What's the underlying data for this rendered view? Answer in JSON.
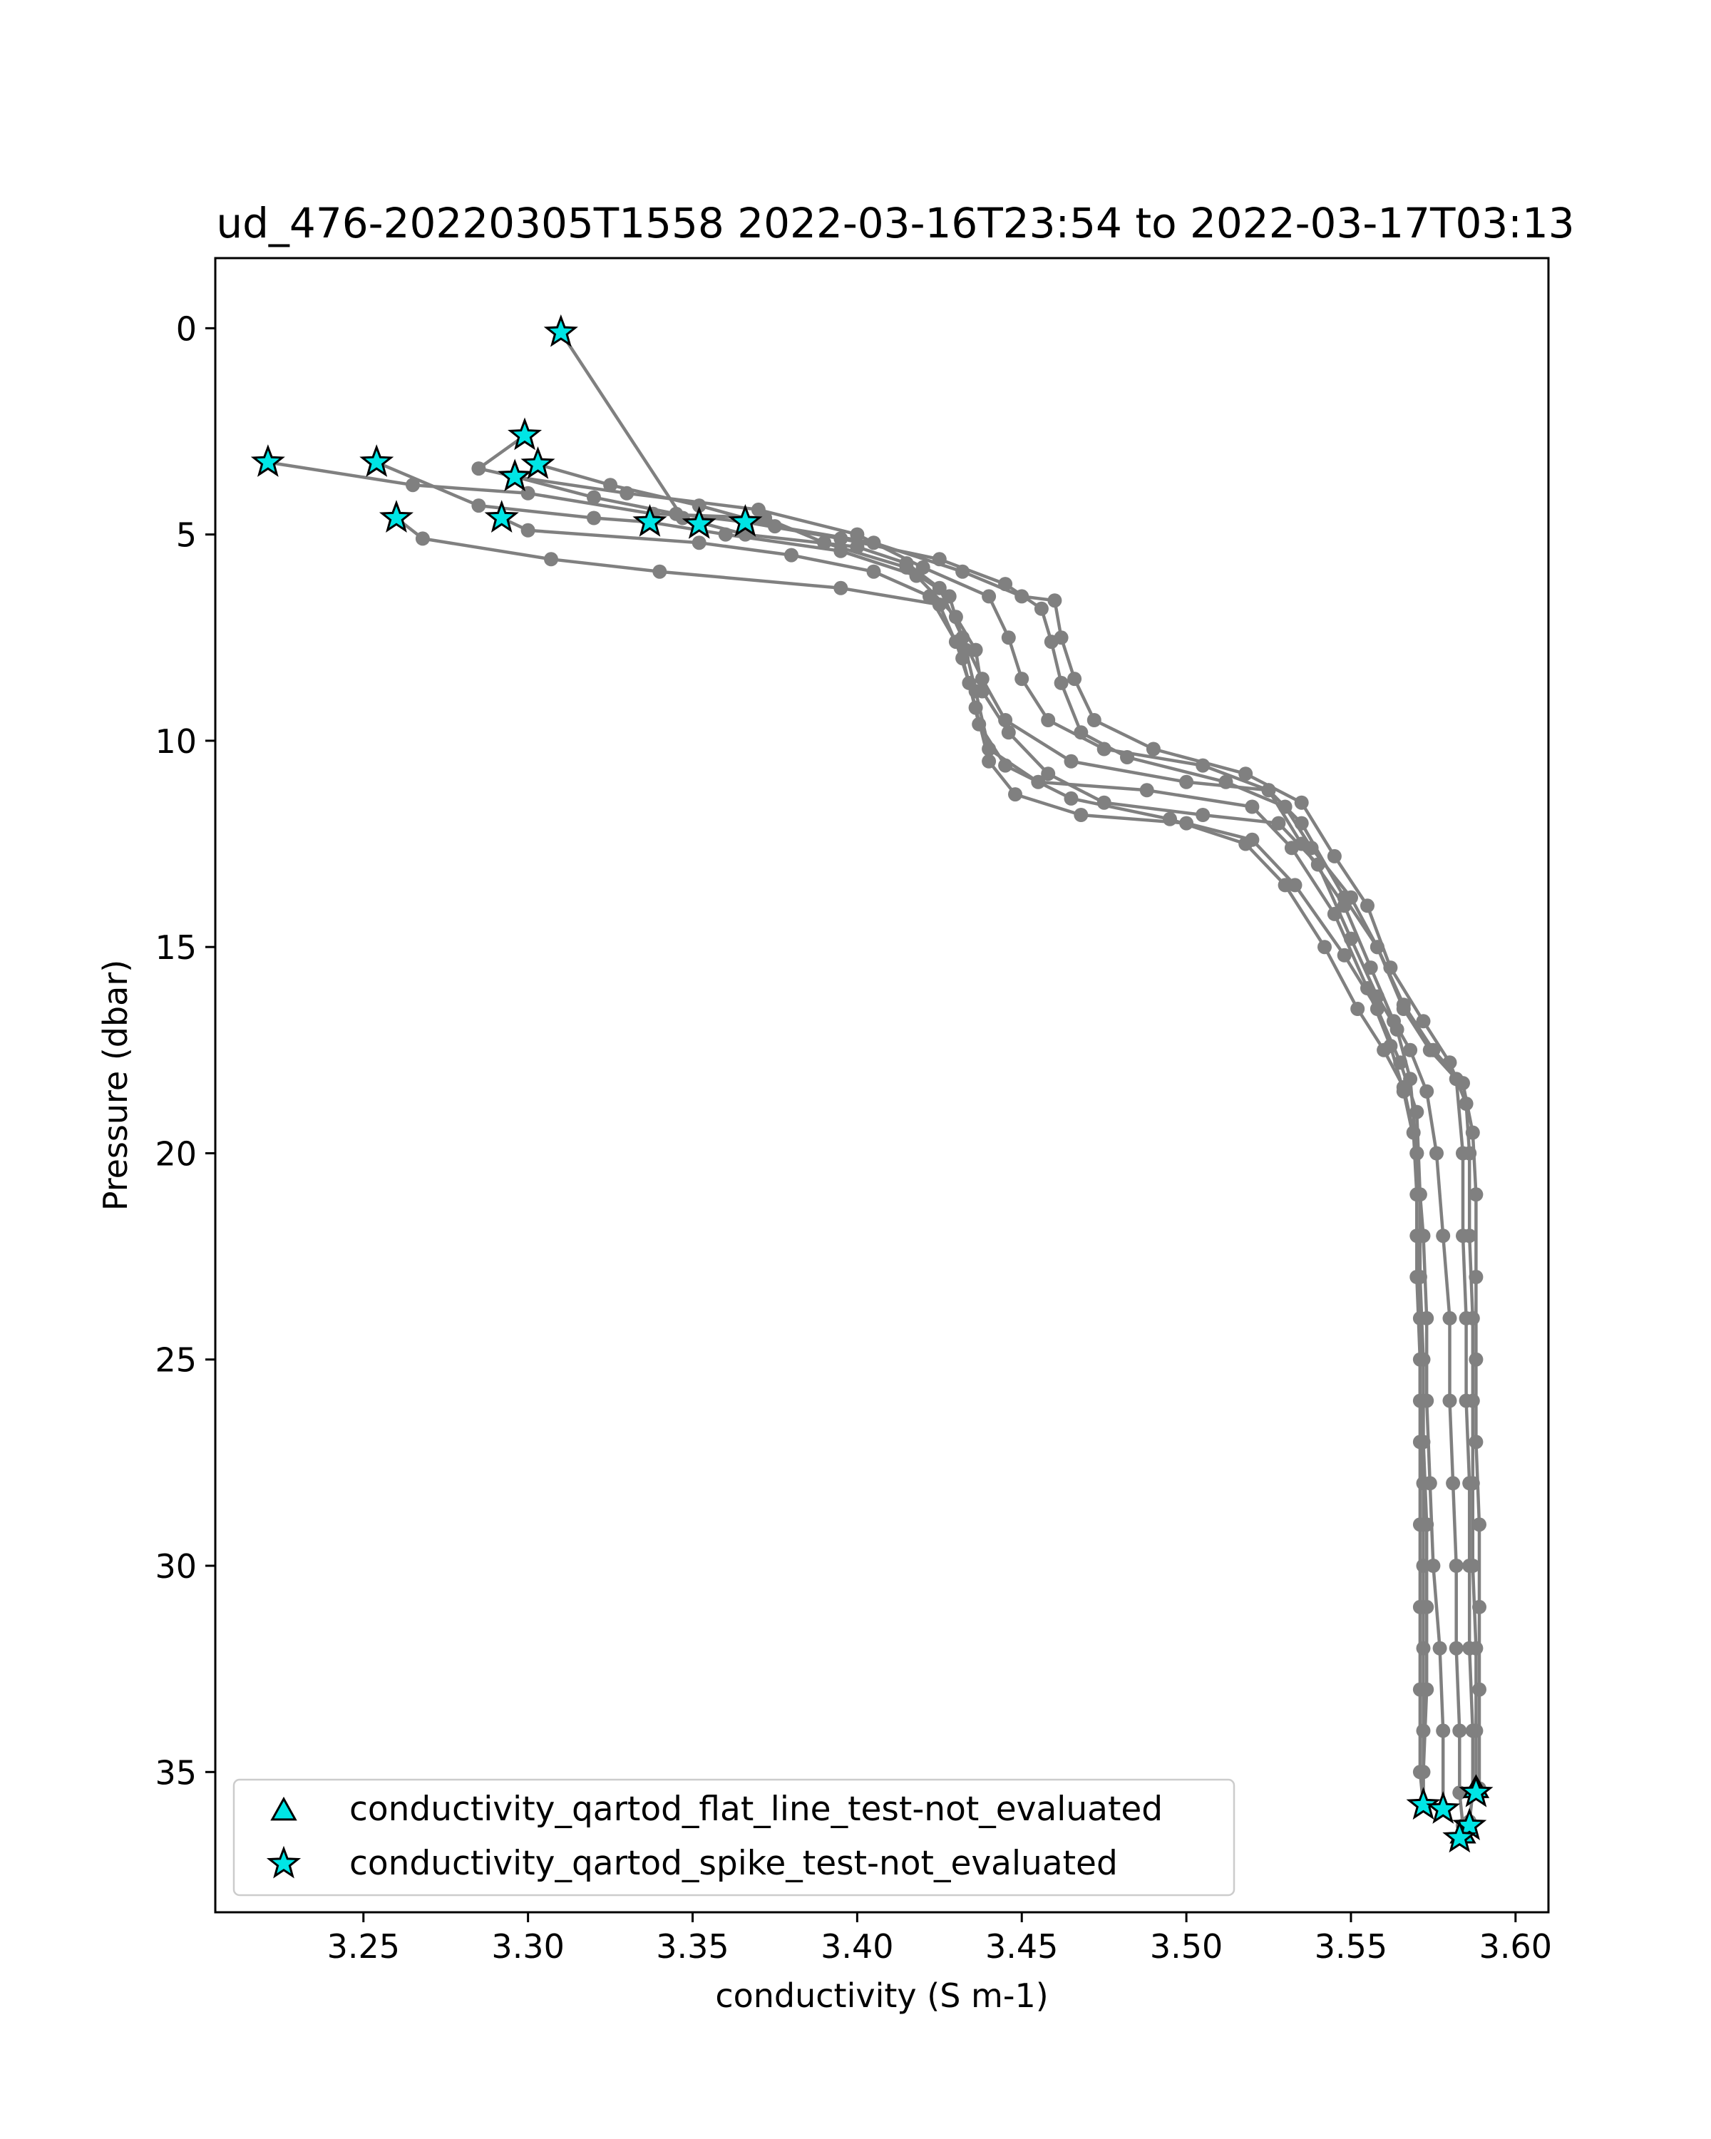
{
  "chart_data": {
    "type": "line",
    "title": "ud_476-20220305T1558 2022-03-16T23:54 to 2022-03-17T03:13",
    "xlabel": "conductivity (S m-1)",
    "ylabel": "Pressure (dbar)",
    "xlim": [
      3.205,
      3.61
    ],
    "ylim": [
      38.4,
      -1.7
    ],
    "y_inverted": true,
    "xticks": [
      3.25,
      3.3,
      3.35,
      3.4,
      3.45,
      3.5,
      3.55,
      3.6
    ],
    "xtick_labels": [
      "3.25",
      "3.30",
      "3.35",
      "3.40",
      "3.45",
      "3.50",
      "3.55",
      "3.60"
    ],
    "yticks": [
      0,
      5,
      10,
      15,
      20,
      25,
      30,
      35
    ],
    "ytick_labels": [
      "0",
      "5",
      "10",
      "15",
      "20",
      "25",
      "30",
      "35"
    ],
    "grid": false,
    "line_color": "#808080",
    "marker_color": "#00e5e5",
    "legend": {
      "placement": "lower-left",
      "entries": [
        {
          "label": "conductivity_qartod_flat_line_test-not_evaluated",
          "marker": "triangle"
        },
        {
          "label": "conductivity_qartod_spike_test-not_evaluated",
          "marker": "star"
        }
      ]
    },
    "series": [
      {
        "points": [
          [
            3.31,
            0.1
          ],
          [
            3.347,
            4.6
          ],
          [
            3.366,
            5.0
          ],
          [
            3.4,
            5.3
          ],
          [
            3.415,
            5.7
          ],
          [
            3.425,
            6.3
          ],
          [
            3.432,
            7.5
          ],
          [
            3.438,
            8.5
          ],
          [
            3.445,
            9.5
          ],
          [
            3.465,
            10.5
          ],
          [
            3.5,
            11.0
          ],
          [
            3.525,
            11.2
          ],
          [
            3.535,
            12.5
          ],
          [
            3.548,
            14.0
          ],
          [
            3.556,
            15.5
          ],
          [
            3.563,
            16.8
          ],
          [
            3.568,
            17.5
          ],
          [
            3.573,
            18.5
          ],
          [
            3.576,
            20.0
          ],
          [
            3.578,
            22.0
          ],
          [
            3.58,
            24.0
          ],
          [
            3.58,
            26.0
          ],
          [
            3.581,
            28.0
          ],
          [
            3.582,
            30.0
          ],
          [
            3.582,
            32.0
          ],
          [
            3.583,
            34.0
          ],
          [
            3.583,
            35.5
          ],
          [
            3.584,
            36.3
          ]
        ]
      },
      {
        "points": [
          [
            3.221,
            3.25
          ],
          [
            3.265,
            3.8
          ],
          [
            3.3,
            4.0
          ],
          [
            3.338,
            4.5
          ],
          [
            3.372,
            4.6
          ],
          [
            3.39,
            5.2
          ],
          [
            3.415,
            5.8
          ],
          [
            3.428,
            6.5
          ],
          [
            3.433,
            7.8
          ],
          [
            3.436,
            8.8
          ],
          [
            3.44,
            10.2
          ],
          [
            3.455,
            11.0
          ],
          [
            3.488,
            11.2
          ],
          [
            3.52,
            11.6
          ],
          [
            3.532,
            12.6
          ],
          [
            3.545,
            14.2
          ],
          [
            3.555,
            16.0
          ],
          [
            3.562,
            17.4
          ],
          [
            3.566,
            18.5
          ],
          [
            3.57,
            20.0
          ],
          [
            3.572,
            22.0
          ],
          [
            3.573,
            24.0
          ],
          [
            3.573,
            26.0
          ],
          [
            3.574,
            28.0
          ],
          [
            3.575,
            30.0
          ],
          [
            3.577,
            32.0
          ],
          [
            3.578,
            34.0
          ],
          [
            3.578,
            35.9
          ]
        ]
      },
      {
        "points": [
          [
            3.254,
            3.25
          ],
          [
            3.285,
            4.3
          ],
          [
            3.32,
            4.6
          ],
          [
            3.337,
            4.7
          ],
          [
            3.36,
            5.0
          ],
          [
            3.395,
            5.4
          ],
          [
            3.418,
            6.0
          ],
          [
            3.43,
            7.0
          ],
          [
            3.436,
            7.8
          ],
          [
            3.438,
            8.8
          ],
          [
            3.446,
            9.8
          ],
          [
            3.458,
            10.8
          ],
          [
            3.475,
            11.5
          ],
          [
            3.505,
            11.8
          ],
          [
            3.528,
            12.0
          ],
          [
            3.54,
            13.0
          ],
          [
            3.55,
            14.8
          ],
          [
            3.558,
            16.2
          ],
          [
            3.564,
            17.0
          ],
          [
            3.568,
            18.2
          ],
          [
            3.57,
            20.0
          ],
          [
            3.57,
            22.0
          ],
          [
            3.571,
            24.0
          ],
          [
            3.571,
            26.0
          ],
          [
            3.572,
            28.0
          ],
          [
            3.572,
            30.0
          ],
          [
            3.572,
            32.0
          ],
          [
            3.572,
            34.0
          ],
          [
            3.572,
            35.8
          ]
        ]
      },
      {
        "points": [
          [
            3.26,
            4.6
          ],
          [
            3.268,
            5.1
          ],
          [
            3.307,
            5.6
          ],
          [
            3.34,
            5.9
          ],
          [
            3.395,
            6.3
          ],
          [
            3.425,
            6.7
          ],
          [
            3.432,
            8.0
          ],
          [
            3.436,
            9.2
          ],
          [
            3.44,
            10.5
          ],
          [
            3.448,
            11.3
          ],
          [
            3.468,
            11.8
          ],
          [
            3.5,
            12.0
          ],
          [
            3.52,
            12.4
          ],
          [
            3.533,
            13.5
          ],
          [
            3.548,
            15.2
          ],
          [
            3.558,
            16.5
          ],
          [
            3.565,
            17.8
          ],
          [
            3.57,
            19.0
          ],
          [
            3.571,
            21.0
          ],
          [
            3.571,
            23.0
          ],
          [
            3.572,
            25.0
          ],
          [
            3.572,
            27.0
          ],
          [
            3.573,
            29.0
          ],
          [
            3.573,
            31.0
          ],
          [
            3.573,
            33.0
          ],
          [
            3.572,
            35.0
          ],
          [
            3.572,
            35.8
          ]
        ]
      },
      {
        "points": [
          [
            3.292,
            4.6
          ],
          [
            3.3,
            4.9
          ],
          [
            3.352,
            5.2
          ],
          [
            3.38,
            5.5
          ],
          [
            3.405,
            5.9
          ],
          [
            3.422,
            6.5
          ],
          [
            3.43,
            7.6
          ],
          [
            3.434,
            8.6
          ],
          [
            3.437,
            9.6
          ],
          [
            3.445,
            10.6
          ],
          [
            3.465,
            11.4
          ],
          [
            3.495,
            11.9
          ],
          [
            3.518,
            12.5
          ],
          [
            3.53,
            13.5
          ],
          [
            3.542,
            15.0
          ],
          [
            3.552,
            16.5
          ],
          [
            3.56,
            17.5
          ],
          [
            3.566,
            18.4
          ],
          [
            3.569,
            19.5
          ],
          [
            3.57,
            21.0
          ],
          [
            3.57,
            23.0
          ],
          [
            3.571,
            25.0
          ],
          [
            3.571,
            27.0
          ],
          [
            3.571,
            29.0
          ],
          [
            3.571,
            31.0
          ],
          [
            3.571,
            33.0
          ],
          [
            3.571,
            35.0
          ],
          [
            3.572,
            35.8
          ]
        ]
      },
      {
        "points": [
          [
            3.299,
            2.6
          ],
          [
            3.285,
            3.4
          ],
          [
            3.296,
            3.6
          ],
          [
            3.33,
            4.0
          ],
          [
            3.37,
            4.4
          ],
          [
            3.4,
            5.0
          ],
          [
            3.42,
            5.8
          ],
          [
            3.44,
            6.5
          ],
          [
            3.446,
            7.5
          ],
          [
            3.45,
            8.5
          ],
          [
            3.458,
            9.5
          ],
          [
            3.475,
            10.2
          ],
          [
            3.505,
            10.6
          ],
          [
            3.525,
            11.2
          ],
          [
            3.535,
            12.0
          ],
          [
            3.548,
            13.8
          ],
          [
            3.558,
            15.0
          ],
          [
            3.566,
            16.5
          ],
          [
            3.574,
            17.5
          ],
          [
            3.582,
            18.2
          ],
          [
            3.584,
            20.0
          ],
          [
            3.584,
            22.0
          ],
          [
            3.585,
            24.0
          ],
          [
            3.585,
            26.0
          ],
          [
            3.586,
            28.0
          ],
          [
            3.586,
            30.0
          ],
          [
            3.586,
            32.0
          ],
          [
            3.587,
            34.0
          ],
          [
            3.587,
            35.5
          ],
          [
            3.586,
            36.2
          ]
        ]
      },
      {
        "points": [
          [
            3.303,
            3.3
          ],
          [
            3.325,
            3.8
          ],
          [
            3.352,
            4.3
          ],
          [
            3.375,
            4.8
          ],
          [
            3.405,
            5.2
          ],
          [
            3.432,
            5.9
          ],
          [
            3.45,
            6.5
          ],
          [
            3.46,
            6.6
          ],
          [
            3.462,
            7.5
          ],
          [
            3.466,
            8.5
          ],
          [
            3.472,
            9.5
          ],
          [
            3.49,
            10.2
          ],
          [
            3.518,
            10.8
          ],
          [
            3.535,
            11.5
          ],
          [
            3.545,
            12.8
          ],
          [
            3.555,
            14.0
          ],
          [
            3.562,
            15.5
          ],
          [
            3.572,
            16.8
          ],
          [
            3.58,
            17.8
          ],
          [
            3.585,
            18.8
          ],
          [
            3.586,
            20.0
          ],
          [
            3.586,
            22.0
          ],
          [
            3.587,
            24.0
          ],
          [
            3.587,
            26.0
          ],
          [
            3.587,
            28.0
          ],
          [
            3.587,
            30.0
          ],
          [
            3.588,
            32.0
          ],
          [
            3.588,
            34.0
          ],
          [
            3.588,
            35.5
          ]
        ]
      },
      {
        "points": [
          [
            3.296,
            3.6
          ],
          [
            3.32,
            4.1
          ],
          [
            3.345,
            4.5
          ],
          [
            3.366,
            4.7
          ],
          [
            3.395,
            5.1
          ],
          [
            3.425,
            5.6
          ],
          [
            3.445,
            6.2
          ],
          [
            3.456,
            6.8
          ],
          [
            3.459,
            7.6
          ],
          [
            3.462,
            8.6
          ],
          [
            3.468,
            9.8
          ],
          [
            3.482,
            10.4
          ],
          [
            3.512,
            11.0
          ],
          [
            3.53,
            11.6
          ],
          [
            3.538,
            12.6
          ],
          [
            3.55,
            13.8
          ],
          [
            3.558,
            15.0
          ],
          [
            3.566,
            16.4
          ],
          [
            3.575,
            17.5
          ],
          [
            3.584,
            18.3
          ],
          [
            3.587,
            19.5
          ],
          [
            3.588,
            21.0
          ],
          [
            3.588,
            23.0
          ],
          [
            3.588,
            25.0
          ],
          [
            3.588,
            27.0
          ],
          [
            3.589,
            29.0
          ],
          [
            3.589,
            31.0
          ],
          [
            3.589,
            33.0
          ],
          [
            3.589,
            35.4
          ]
        ]
      }
    ],
    "spike_markers": [
      [
        3.31,
        0.1
      ],
      [
        3.299,
        2.6
      ],
      [
        3.221,
        3.25
      ],
      [
        3.254,
        3.25
      ],
      [
        3.303,
        3.3
      ],
      [
        3.296,
        3.6
      ],
      [
        3.26,
        4.6
      ],
      [
        3.292,
        4.6
      ],
      [
        3.337,
        4.7
      ],
      [
        3.352,
        4.75
      ],
      [
        3.366,
        4.7
      ],
      [
        3.572,
        35.8
      ],
      [
        3.578,
        35.9
      ],
      [
        3.588,
        35.5
      ],
      [
        3.586,
        36.3
      ],
      [
        3.583,
        36.6
      ]
    ],
    "flat_line_markers": [
      [
        3.588,
        35.4
      ],
      [
        3.584,
        36.5
      ]
    ]
  }
}
